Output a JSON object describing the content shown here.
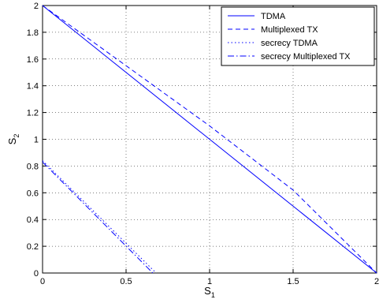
{
  "chart_data": {
    "type": "line",
    "title": "",
    "xlabel": "S",
    "xlabel_sub": "1",
    "ylabel": "S",
    "ylabel_sub": "2",
    "xlim": [
      0,
      2
    ],
    "ylim": [
      0,
      2
    ],
    "xticks": [
      "0",
      "0.5",
      "1",
      "1.5",
      "2"
    ],
    "yticks": [
      "0",
      "0.2",
      "0.4",
      "0.6",
      "0.8",
      "1",
      "1.2",
      "1.4",
      "1.6",
      "1.8",
      "2"
    ],
    "grid": true,
    "legend_position": "top-right",
    "series": [
      {
        "name": "TDMA",
        "style": "solid",
        "color": "#0000ff",
        "x": [
          0,
          2
        ],
        "y": [
          2,
          0
        ]
      },
      {
        "name": "Multiplexed TX",
        "style": "dashed",
        "color": "#0000ff",
        "x": [
          0,
          2
        ],
        "y": [
          2.0,
          0
        ]
      },
      {
        "name": "secrecy TDMA",
        "style": "dotted",
        "color": "#0000ff",
        "x": [
          0,
          0.68
        ],
        "y": [
          0.84,
          0
        ]
      },
      {
        "name": "secrecy Multiplexed TX",
        "style": "dashdot",
        "color": "#0000ff",
        "x": [
          0,
          0.66
        ],
        "y": [
          0.83,
          0
        ]
      }
    ],
    "dashed_curve": {
      "x": [
        0,
        0.5,
        1.0,
        1.5,
        2.0
      ],
      "y": [
        2.0,
        1.55,
        1.1,
        0.62,
        0
      ]
    }
  }
}
